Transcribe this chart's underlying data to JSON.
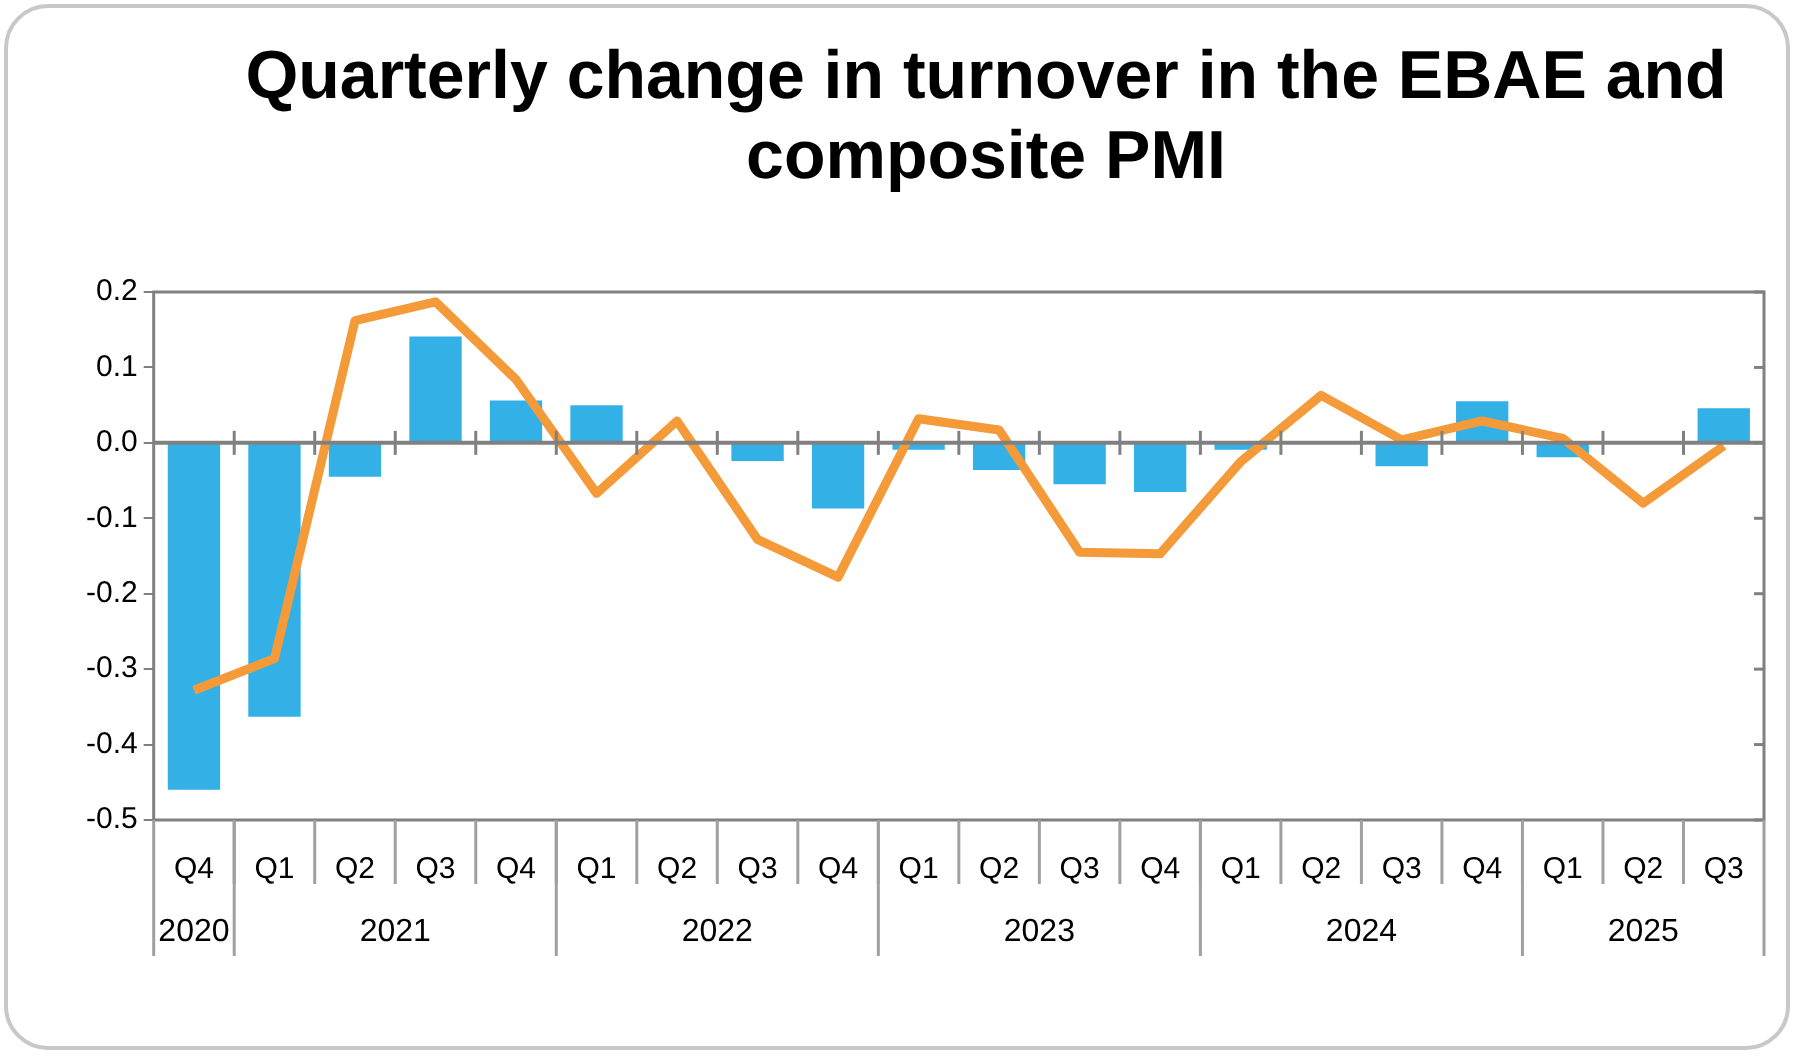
{
  "chart_data": {
    "type": "bar",
    "title": "Quarterly change in turnover in the EBAE and composite PMI",
    "categories": [
      "Q4",
      "Q1",
      "Q2",
      "Q3",
      "Q4",
      "Q1",
      "Q2",
      "Q3",
      "Q4",
      "Q1",
      "Q2",
      "Q3",
      "Q4",
      "Q1",
      "Q2",
      "Q3",
      "Q4",
      "Q1",
      "Q2",
      "Q3"
    ],
    "series": [
      {
        "color": "#33b0e6",
        "values": [
          -0.46,
          -0.363,
          -0.045,
          0.141,
          0.056,
          0.05,
          null,
          -0.024,
          -0.087,
          -0.009,
          -0.036,
          -0.055,
          -0.065,
          -0.009,
          null,
          -0.031,
          0.055,
          -0.019,
          0,
          0.046
        ]
      },
      {
        "type": "line",
        "color": "#f59a38",
        "values": [
          -0.328,
          -0.286,
          0.162,
          0.187,
          0.084,
          -0.067,
          0.029,
          -0.128,
          -0.178,
          0.032,
          0.017,
          -0.145,
          -0.147,
          -0.025,
          0.063,
          0.004,
          0.029,
          0.006,
          -0.08,
          -0.004
        ]
      }
    ],
    "ylim": [
      -0.5,
      0.2
    ],
    "yticks": [
      {
        "value": -0.5,
        "label": "-0.5"
      },
      {
        "value": -0.4,
        "label": "-0.4"
      },
      {
        "value": -0.3,
        "label": "-0.3"
      },
      {
        "value": -0.2,
        "label": "-0.2"
      },
      {
        "value": -0.1,
        "label": "-0.1"
      },
      {
        "value": 0,
        "label": "0.0"
      },
      {
        "value": 0.1,
        "label": "0.1"
      },
      {
        "value": 0.2,
        "label": "0.2"
      }
    ],
    "ref_lines": [
      {
        "axis": "y",
        "value": 0,
        "color": "#808080"
      }
    ],
    "annotations": [
      "2020",
      "2021",
      "2022",
      "2023",
      "2024",
      "2025"
    ],
    "grid": false,
    "legend": false,
    "marker": "none",
    "line_style": "solid"
  }
}
